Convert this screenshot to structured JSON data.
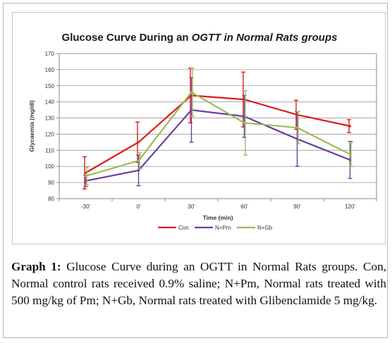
{
  "chart_data": {
    "type": "line",
    "title_part1": "Glucose Curve During an ",
    "title_part2": "OGTT in Normal Rats groups",
    "xlabel": "Time (min)",
    "ylabel": "Glycaemia (mg/dl)",
    "categories": [
      "-30'",
      "0'",
      "30'",
      "60'",
      "90'",
      "120'"
    ],
    "ylim": [
      80,
      170
    ],
    "yticks": [
      80,
      90,
      100,
      110,
      120,
      130,
      140,
      150,
      160,
      170
    ],
    "grid": true,
    "legend_position": "bottom",
    "series": [
      {
        "name": "Con",
        "color": "#e01b1b",
        "values": [
          96,
          115,
          144,
          141.5,
          132,
          125
        ],
        "error": [
          10,
          12.5,
          17,
          17,
          9,
          4
        ]
      },
      {
        "name": "N+Pm",
        "color": "#6b3fa0",
        "values": [
          91,
          97.5,
          135,
          131,
          117,
          104
        ],
        "error": [
          3.5,
          9.5,
          20,
          13,
          17,
          11.5
        ]
      },
      {
        "name": "N+Gb",
        "color": "#9bbb59",
        "values": [
          94,
          103.5,
          146,
          127,
          124,
          107.5
        ],
        "error": [
          5.5,
          5,
          15,
          20,
          10,
          7.5
        ]
      }
    ]
  },
  "caption": {
    "lead": "Graph 1:",
    "text": " Glucose Curve during an OGTT in Normal Rats groups. Con, Normal control rats received 0.9% saline; N+Pm, Normal rats treated with 500 mg/kg of Pm; N+Gb, Normal rats treated with Glibenclamide 5 mg/kg."
  }
}
